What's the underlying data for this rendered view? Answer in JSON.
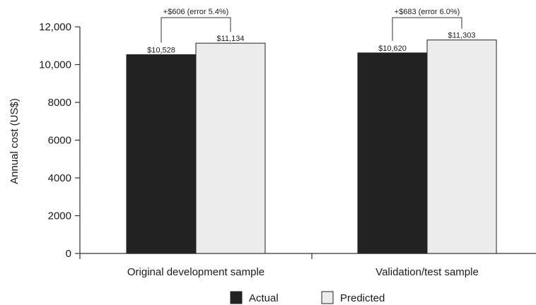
{
  "chart_data": {
    "type": "bar",
    "ylabel": "Annual cost (US$)",
    "ylim": [
      0,
      12000
    ],
    "y_ticks": [
      0,
      2000,
      4000,
      6000,
      8000,
      10000,
      12000
    ],
    "y_tick_labels": [
      "0",
      "2000",
      "4000",
      "6000",
      "8000",
      "10,000",
      "12,000"
    ],
    "categories": [
      "Original development sample",
      "Validation/test sample"
    ],
    "series": [
      {
        "name": "Actual",
        "color": "#222222",
        "values": [
          10528,
          10620
        ],
        "labels": [
          "$10,528",
          "$10,620"
        ]
      },
      {
        "name": "Predicted",
        "color": "#ececec",
        "values": [
          11134,
          11303
        ],
        "labels": [
          "$11,134",
          "$11,303"
        ]
      }
    ],
    "annotations": [
      "+$606 (error 5.4%)",
      "+$683 (error 6.0%)"
    ],
    "legend_position": "bottom",
    "grid": false
  }
}
